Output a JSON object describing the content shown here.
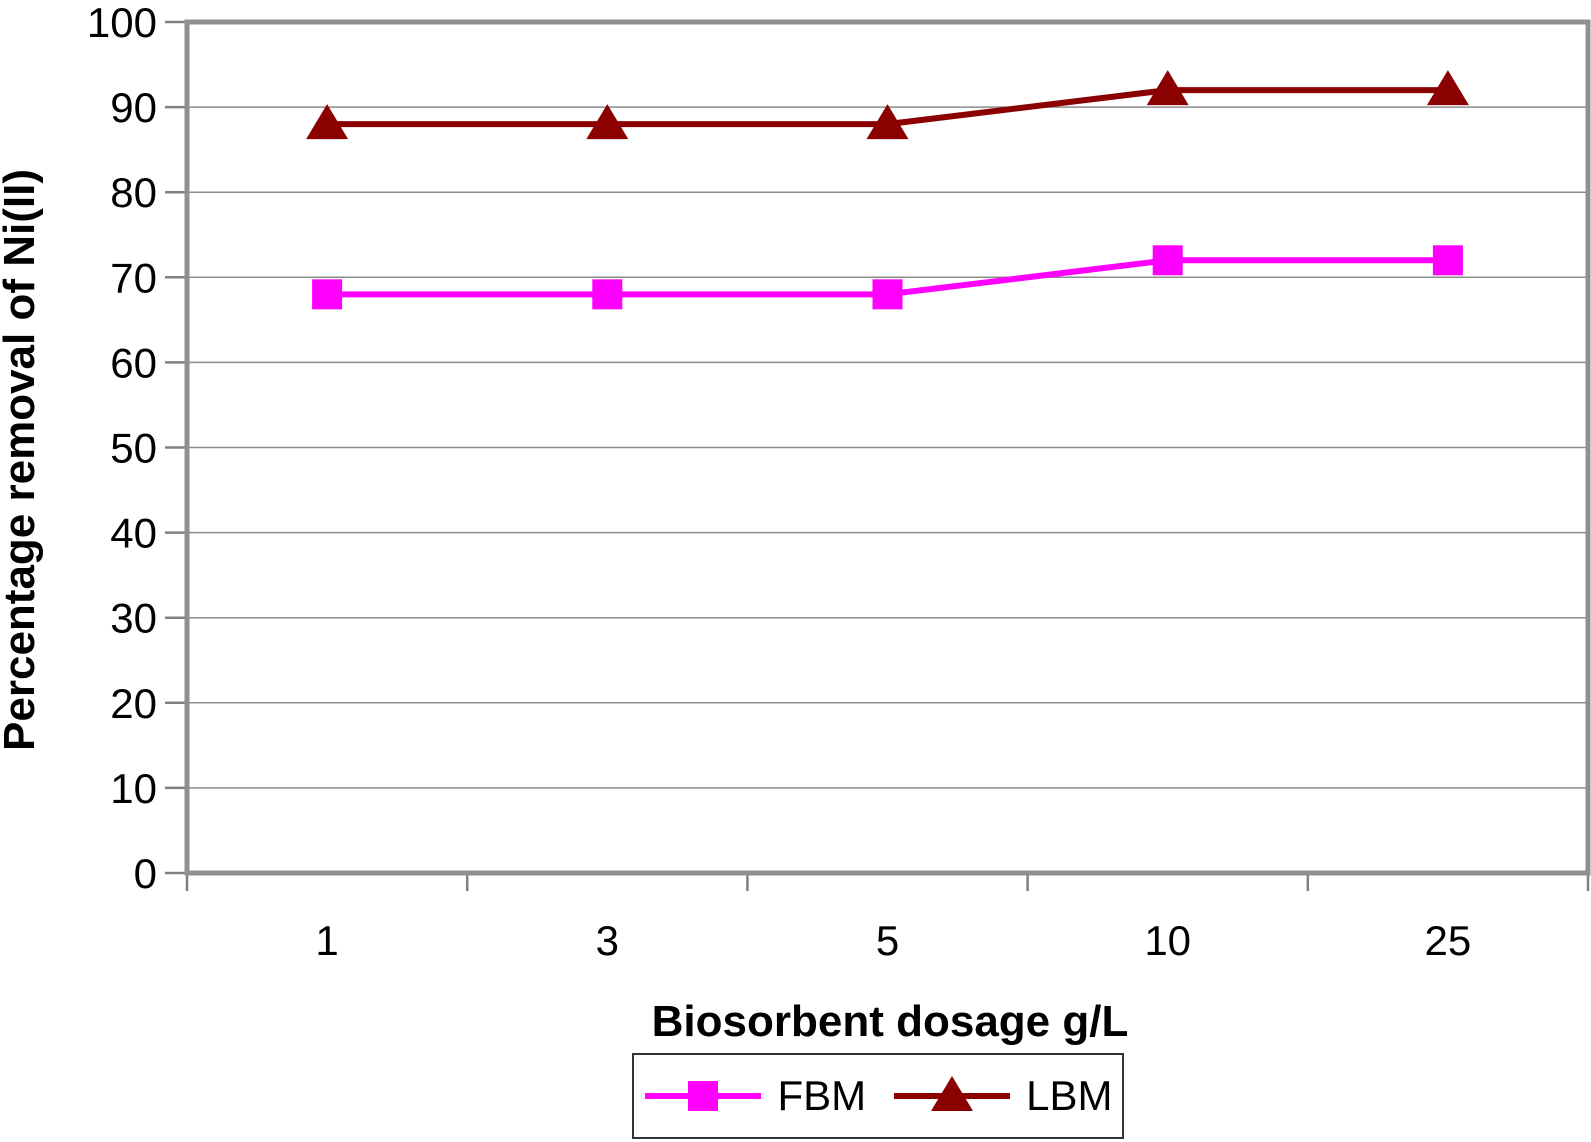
{
  "chart_data": {
    "type": "line",
    "title": "",
    "categories": [
      "1",
      "3",
      "5",
      "10",
      "25"
    ],
    "series": [
      {
        "name": "FBM",
        "values": [
          68,
          68,
          68,
          72,
          72
        ],
        "color": "#FF00FF",
        "marker": "square"
      },
      {
        "name": "LBM",
        "values": [
          88,
          88,
          88,
          92,
          92
        ],
        "color": "#8B0000",
        "marker": "triangle"
      }
    ],
    "xlabel": "Biosorbent dosage g/L",
    "ylabel": "Percentage removal of Ni(II)",
    "ylim": [
      0,
      100
    ],
    "ytick_step": 10,
    "yticks": [
      0,
      10,
      20,
      30,
      40,
      50,
      60,
      70,
      80,
      90,
      100
    ],
    "grid": "horizontal",
    "legend_position": "bottom-center",
    "legend_entries": [
      "FBM",
      "LBM"
    ]
  },
  "colors": {
    "grid": "#8c8c8c",
    "border": "#909090",
    "tick": "#808080",
    "text": "#000000",
    "background": "#ffffff",
    "legend_border": "#333333"
  }
}
